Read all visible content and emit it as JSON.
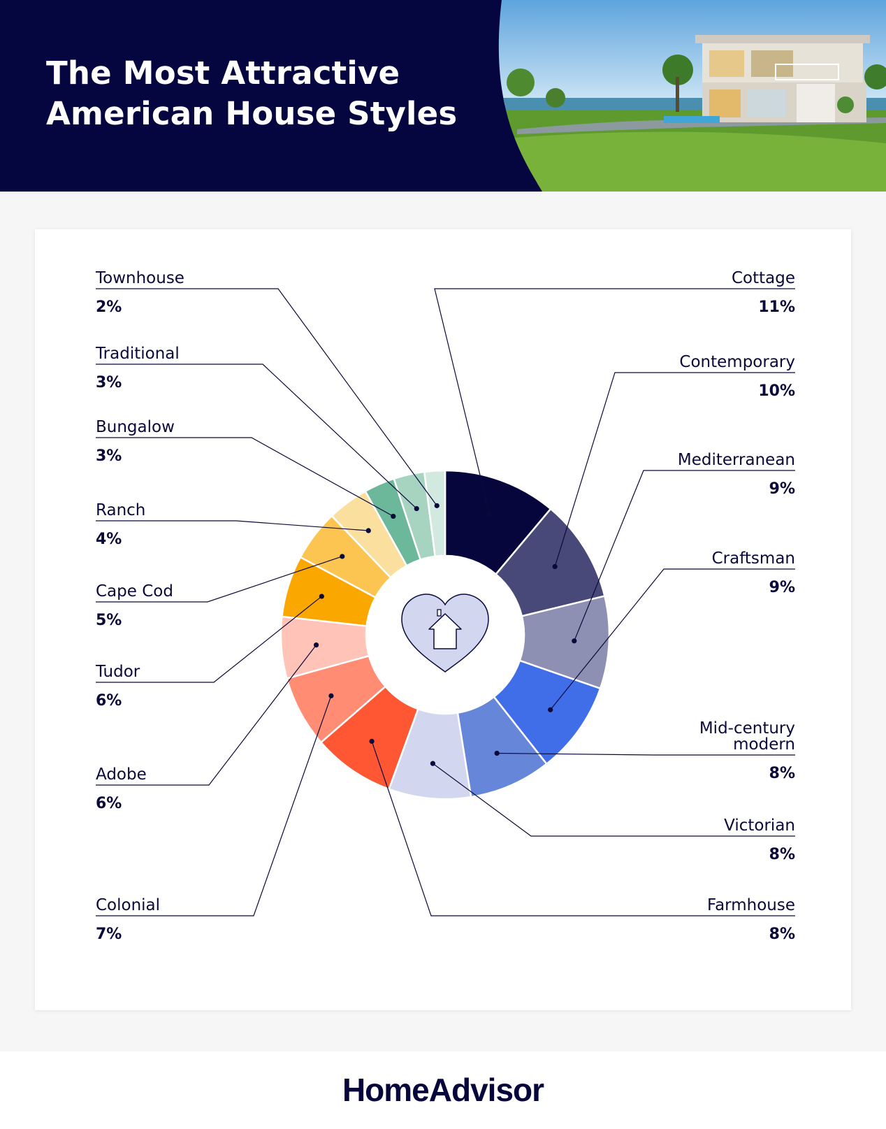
{
  "header": {
    "title_line1": "The Most Attractive",
    "title_line2": "American House Styles"
  },
  "chart_data": {
    "type": "pie",
    "variant": "donut",
    "title": "The Most Attractive American House Styles",
    "unit": "%",
    "slices": [
      {
        "label": "Cottage",
        "label_lines": [
          "Cottage"
        ],
        "value": 11,
        "value_label": "11%",
        "color": "#06063d"
      },
      {
        "label": "Contemporary",
        "label_lines": [
          "Contemporary"
        ],
        "value": 10,
        "value_label": "10%",
        "color": "#494979"
      },
      {
        "label": "Mediterranean",
        "label_lines": [
          "Mediterranean"
        ],
        "value": 9,
        "value_label": "9%",
        "color": "#8d8fb3"
      },
      {
        "label": "Craftsman",
        "label_lines": [
          "Craftsman"
        ],
        "value": 9,
        "value_label": "9%",
        "color": "#3f6ee8"
      },
      {
        "label": "Mid-century modern",
        "label_lines": [
          "Mid-century",
          "modern"
        ],
        "value": 8,
        "value_label": "8%",
        "color": "#6687d9"
      },
      {
        "label": "Victorian",
        "label_lines": [
          "Victorian"
        ],
        "value": 8,
        "value_label": "8%",
        "color": "#d2d6ef"
      },
      {
        "label": "Farmhouse",
        "label_lines": [
          "Farmhouse"
        ],
        "value": 8,
        "value_label": "8%",
        "color": "#ff5733"
      },
      {
        "label": "Colonial",
        "label_lines": [
          "Colonial"
        ],
        "value": 7,
        "value_label": "7%",
        "color": "#ff8c73"
      },
      {
        "label": "Adobe",
        "label_lines": [
          "Adobe"
        ],
        "value": 6,
        "value_label": "6%",
        "color": "#ffc3b8"
      },
      {
        "label": "Tudor",
        "label_lines": [
          "Tudor"
        ],
        "value": 6,
        "value_label": "6%",
        "color": "#faa700"
      },
      {
        "label": "Cape Cod",
        "label_lines": [
          "Cape Cod"
        ],
        "value": 5,
        "value_label": "5%",
        "color": "#fcc552"
      },
      {
        "label": "Ranch",
        "label_lines": [
          "Ranch"
        ],
        "value": 4,
        "value_label": "4%",
        "color": "#fbdf9e"
      },
      {
        "label": "Bungalow",
        "label_lines": [
          "Bungalow"
        ],
        "value": 3,
        "value_label": "3%",
        "color": "#6cb89a"
      },
      {
        "label": "Traditional",
        "label_lines": [
          "Traditional"
        ],
        "value": 3,
        "value_label": "3%",
        "color": "#a7d4c0"
      },
      {
        "label": "Townhouse",
        "label_lines": [
          "Townhouse"
        ],
        "value": 2,
        "value_label": "2%",
        "color": "#d2e9df"
      }
    ],
    "center_icon": "heart-house-icon",
    "legend": "callout-labels-left-and-right"
  },
  "footer": {
    "brand": "HomeAdvisor"
  },
  "colors": {
    "header_bg": "#05053f",
    "page_bg": "#f6f6f6",
    "ink": "#0a0a3a"
  }
}
